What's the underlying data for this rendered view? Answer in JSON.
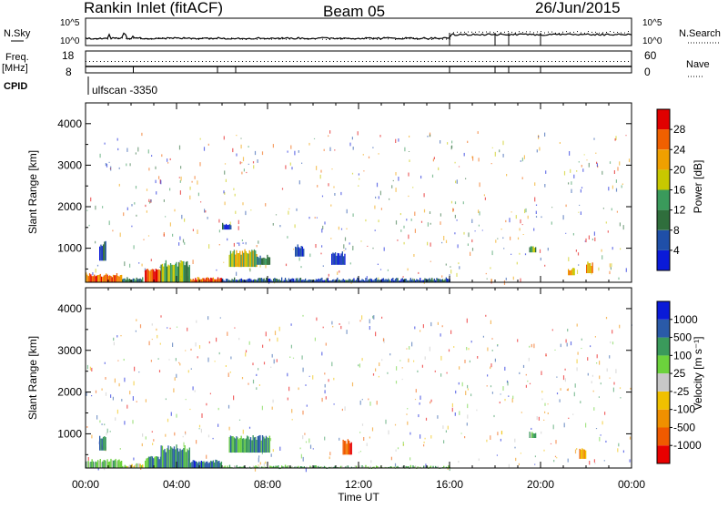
{
  "header": {
    "station": "Rankin Inlet (fitACF)",
    "beam": "Beam 05",
    "date": "26/Jun/2015"
  },
  "top_panels": {
    "nsky_label": "N.Sky",
    "nsky_ticks": [
      "10^5",
      "10^0"
    ],
    "nsearch_label": "N.Search",
    "nsearch_ticks": [
      "10^5",
      "10^0"
    ],
    "freq_label": "Freq.",
    "freq_unit": "[MHz]",
    "freq_ticks": [
      "18",
      "8"
    ],
    "nave_label": "Nave",
    "nave_ticks": [
      "60",
      "0"
    ],
    "cpid_label": "CPID",
    "cpid_value": "ulfscan -3350"
  },
  "colors": {
    "power_scale": [
      "#0a1ad8",
      "#1f4fa8",
      "#2f6e3c",
      "#3a9a5b",
      "#c8c800",
      "#f0a000",
      "#f06000",
      "#e00000"
    ],
    "velocity_scale": [
      "#e80000",
      "#f05a00",
      "#f09000",
      "#f0c000",
      "#c8c8c8",
      "#6cd23c",
      "#3a9a5b",
      "#2a5aa8",
      "#0a1ad8"
    ]
  },
  "chart_data": [
    {
      "type": "heatmap",
      "title": "Power",
      "ylabel": "Slant Range [km]",
      "xlabel": "",
      "xlim": [
        "00:00",
        "24:00"
      ],
      "ylim": [
        180,
        4500
      ],
      "x_ticks": [
        "00:00",
        "04:00",
        "08:00",
        "12:00",
        "16:00",
        "20:00",
        "00:00"
      ],
      "y_ticks": [
        1000,
        2000,
        3000,
        4000
      ],
      "colorbar": {
        "label": "Power [dB]",
        "ticks": [
          "4",
          "8",
          "12",
          "16",
          "20",
          "24",
          "28"
        ],
        "range": [
          0,
          30
        ]
      },
      "patches": [
        {
          "t0": 0.0,
          "t1": 1.6,
          "r0": 180,
          "r1": 420,
          "value": 26
        },
        {
          "t0": 1.6,
          "t1": 2.5,
          "r0": 180,
          "r1": 330,
          "value": 9
        },
        {
          "t0": 2.6,
          "t1": 3.3,
          "r0": 180,
          "r1": 550,
          "value": 25
        },
        {
          "t0": 3.3,
          "t1": 4.6,
          "r0": 180,
          "r1": 750,
          "value": 12
        },
        {
          "t0": 4.6,
          "t1": 6.0,
          "r0": 180,
          "r1": 320,
          "value": 24
        },
        {
          "t0": 6.0,
          "t1": 16.0,
          "r0": 180,
          "r1": 300,
          "value": 5
        },
        {
          "t0": 6.3,
          "t1": 7.5,
          "r0": 550,
          "r1": 1000,
          "value": 16
        },
        {
          "t0": 7.5,
          "t1": 8.1,
          "r0": 600,
          "r1": 850,
          "value": 10
        },
        {
          "t0": 6.0,
          "t1": 6.4,
          "r0": 1450,
          "r1": 1650,
          "value": 5
        },
        {
          "t0": 0.6,
          "t1": 0.9,
          "r0": 700,
          "r1": 1200,
          "value": 7
        },
        {
          "t0": 10.8,
          "t1": 11.4,
          "r0": 600,
          "r1": 950,
          "value": 6
        },
        {
          "t0": 9.2,
          "t1": 9.6,
          "r0": 800,
          "r1": 1100,
          "value": 5
        },
        {
          "t0": 21.2,
          "t1": 21.5,
          "r0": 350,
          "r1": 550,
          "value": 20
        },
        {
          "t0": 22.0,
          "t1": 22.3,
          "r0": 400,
          "r1": 700,
          "value": 22
        },
        {
          "t0": 19.5,
          "t1": 19.8,
          "r0": 900,
          "r1": 1100,
          "value": 12
        }
      ]
    },
    {
      "type": "heatmap",
      "title": "Velocity",
      "ylabel": "Slant Range [km]",
      "xlabel": "Time UT",
      "xlim": [
        "00:00",
        "24:00"
      ],
      "ylim": [
        180,
        4500
      ],
      "x_ticks": [
        "00:00",
        "04:00",
        "08:00",
        "12:00",
        "16:00",
        "20:00",
        "00:00"
      ],
      "y_ticks": [
        1000,
        2000,
        3000,
        4000
      ],
      "colorbar": {
        "label": "Velocity [m s⁻¹]",
        "ticks": [
          "-1000",
          "-500",
          "-100",
          "-25",
          "25",
          "100",
          "500",
          "1000"
        ]
      },
      "patches": [
        {
          "t0": 0.0,
          "t1": 1.6,
          "r0": 180,
          "r1": 420,
          "value": 5
        },
        {
          "t0": 1.6,
          "t1": 2.5,
          "r0": 180,
          "r1": 300,
          "value": 4
        },
        {
          "t0": 2.6,
          "t1": 3.3,
          "r0": 180,
          "r1": 500,
          "value": 6
        },
        {
          "t0": 3.3,
          "t1": 4.6,
          "r0": 180,
          "r1": 750,
          "value": 6
        },
        {
          "t0": 4.6,
          "t1": 6.0,
          "r0": 180,
          "r1": 400,
          "value": 7
        },
        {
          "t0": 6.0,
          "t1": 16.0,
          "r0": 180,
          "r1": 260,
          "value": 5
        },
        {
          "t0": 6.3,
          "t1": 8.1,
          "r0": 550,
          "r1": 1000,
          "value": 6
        },
        {
          "t0": 0.6,
          "t1": 0.9,
          "r0": 600,
          "r1": 1000,
          "value": 6
        },
        {
          "t0": 11.3,
          "t1": 11.7,
          "r0": 500,
          "r1": 900,
          "value": 1
        },
        {
          "t0": 21.7,
          "t1": 22.0,
          "r0": 400,
          "r1": 700,
          "value": 2
        },
        {
          "t0": 19.5,
          "t1": 19.8,
          "r0": 900,
          "r1": 1100,
          "value": 5
        }
      ]
    }
  ]
}
